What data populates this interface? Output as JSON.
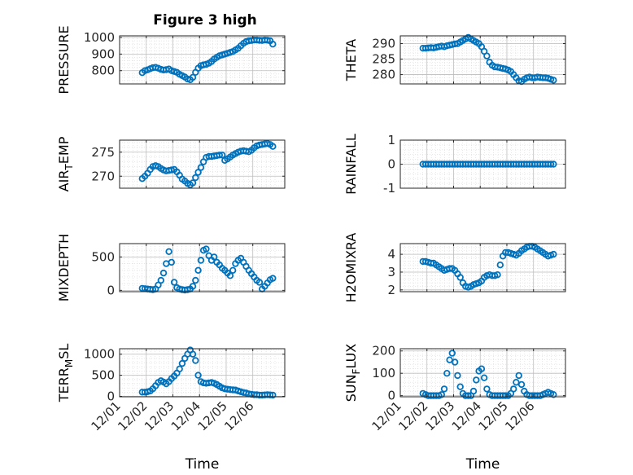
{
  "figure": {
    "title": "Figure 3 high",
    "accent_color": "#0072BD"
  },
  "chart_data": [
    {
      "type": "scatter",
      "ylabel": "PRESSURE",
      "ylim": [
        720,
        1010
      ],
      "yticks": [
        800,
        900,
        1000
      ],
      "x": [
        0.85,
        0.95,
        1.05,
        1.15,
        1.25,
        1.35,
        1.45,
        1.55,
        1.65,
        1.75,
        1.85,
        1.95,
        2.05,
        2.15,
        2.25,
        2.35,
        2.45,
        2.55,
        2.65,
        2.75,
        2.85,
        2.95,
        3.05,
        3.15,
        3.25,
        3.35,
        3.45,
        3.55,
        3.65,
        3.75,
        3.85,
        3.95,
        4.05,
        4.15,
        4.25,
        4.35,
        4.45,
        4.55,
        4.65,
        4.75,
        4.85,
        4.95,
        5.05,
        5.15,
        5.25,
        5.35,
        5.45,
        5.55,
        5.65,
        5.75
      ],
      "y": [
        788,
        800,
        805,
        812,
        818,
        820,
        815,
        808,
        804,
        806,
        810,
        800,
        795,
        790,
        778,
        770,
        762,
        750,
        745,
        760,
        790,
        815,
        830,
        835,
        838,
        845,
        855,
        870,
        880,
        890,
        895,
        900,
        905,
        910,
        915,
        925,
        935,
        950,
        965,
        975,
        980,
        982,
        985,
        985,
        983,
        982,
        985,
        984,
        980,
        960
      ]
    },
    {
      "type": "scatter",
      "ylabel": "THETA",
      "ylim": [
        277,
        292.5
      ],
      "yticks": [
        280,
        285,
        290
      ],
      "x": [
        0.85,
        0.95,
        1.05,
        1.15,
        1.25,
        1.35,
        1.45,
        1.55,
        1.65,
        1.75,
        1.85,
        1.95,
        2.05,
        2.15,
        2.25,
        2.35,
        2.45,
        2.55,
        2.65,
        2.75,
        2.85,
        2.95,
        3.05,
        3.15,
        3.25,
        3.35,
        3.45,
        3.55,
        3.65,
        3.75,
        3.85,
        3.95,
        4.05,
        4.15,
        4.25,
        4.35,
        4.45,
        4.55,
        4.65,
        4.75,
        4.85,
        4.95,
        5.05,
        5.15,
        5.25,
        5.35,
        5.45,
        5.55,
        5.65,
        5.75
      ],
      "y": [
        288.5,
        288.5,
        288.6,
        288.7,
        288.6,
        288.8,
        289.0,
        289.2,
        289.0,
        289.3,
        289.5,
        289.7,
        289.9,
        290.0,
        290.5,
        291.0,
        291.5,
        292.0,
        291.5,
        291.0,
        290.5,
        290.0,
        289.0,
        287.5,
        286.0,
        284.0,
        283.0,
        282.5,
        282.4,
        282.2,
        282.0,
        281.8,
        281.5,
        281.0,
        280.0,
        279.0,
        278.0,
        277.8,
        278.5,
        279.0,
        279.2,
        279.0,
        279.0,
        279.2,
        279.1,
        279.0,
        279.0,
        278.8,
        278.5,
        278.2
      ]
    },
    {
      "type": "scatter",
      "ylabel": "AIR_TEMP",
      "ylim": [
        267.5,
        277.5
      ],
      "yticks": [
        270,
        275
      ],
      "x": [
        0.85,
        0.95,
        1.05,
        1.15,
        1.25,
        1.35,
        1.45,
        1.55,
        1.65,
        1.75,
        1.85,
        1.95,
        2.05,
        2.15,
        2.25,
        2.35,
        2.45,
        2.55,
        2.65,
        2.75,
        2.85,
        2.95,
        3.05,
        3.15,
        3.25,
        3.35,
        3.45,
        3.55,
        3.65,
        3.75,
        3.85,
        3.95,
        4.05,
        4.15,
        4.25,
        4.35,
        4.45,
        4.55,
        4.65,
        4.75,
        4.85,
        4.95,
        5.05,
        5.15,
        5.25,
        5.35,
        5.45,
        5.55,
        5.65,
        5.75
      ],
      "y": [
        269.5,
        270.0,
        270.6,
        271.4,
        272.0,
        272.2,
        272.0,
        271.6,
        271.3,
        271.1,
        271.2,
        271.3,
        271.4,
        270.9,
        270.2,
        269.4,
        269.0,
        268.5,
        268.2,
        268.6,
        269.7,
        270.8,
        271.8,
        273.0,
        273.9,
        274.1,
        274.1,
        274.2,
        274.3,
        274.4,
        274.4,
        273.3,
        273.6,
        274.0,
        274.4,
        274.7,
        275.0,
        275.2,
        275.3,
        275.2,
        275.1,
        275.4,
        275.9,
        276.3,
        276.5,
        276.6,
        276.7,
        276.8,
        276.6,
        276.2
      ]
    },
    {
      "type": "scatter",
      "ylabel": "RAINFALL",
      "ylim": [
        -1,
        1
      ],
      "yticks": [
        -1,
        0,
        1
      ],
      "x": [
        0.85,
        0.95,
        1.05,
        1.15,
        1.25,
        1.35,
        1.45,
        1.55,
        1.65,
        1.75,
        1.85,
        1.95,
        2.05,
        2.15,
        2.25,
        2.35,
        2.45,
        2.55,
        2.65,
        2.75,
        2.85,
        2.95,
        3.05,
        3.15,
        3.25,
        3.35,
        3.45,
        3.55,
        3.65,
        3.75,
        3.85,
        3.95,
        4.05,
        4.15,
        4.25,
        4.35,
        4.45,
        4.55,
        4.65,
        4.75,
        4.85,
        4.95,
        5.05,
        5.15,
        5.25,
        5.35,
        5.45,
        5.55,
        5.65,
        5.75
      ],
      "y": [
        0,
        0,
        0,
        0,
        0,
        0,
        0,
        0,
        0,
        0,
        0,
        0,
        0,
        0,
        0,
        0,
        0,
        0,
        0,
        0,
        0,
        0,
        0,
        0,
        0,
        0,
        0,
        0,
        0,
        0,
        0,
        0,
        0,
        0,
        0,
        0,
        0,
        0,
        0,
        0,
        0,
        0,
        0,
        0,
        0,
        0,
        0,
        0,
        0,
        0
      ]
    },
    {
      "type": "scatter",
      "ylabel": "MIXDEPTH",
      "ylim": [
        -20,
        700
      ],
      "yticks": [
        0,
        500
      ],
      "x": [
        0.85,
        0.95,
        1.05,
        1.15,
        1.25,
        1.35,
        1.45,
        1.55,
        1.65,
        1.75,
        1.85,
        1.95,
        2.05,
        2.15,
        2.25,
        2.35,
        2.45,
        2.55,
        2.65,
        2.75,
        2.85,
        2.95,
        3.05,
        3.15,
        3.25,
        3.35,
        3.45,
        3.55,
        3.65,
        3.75,
        3.85,
        3.95,
        4.05,
        4.15,
        4.25,
        4.35,
        4.45,
        4.55,
        4.65,
        4.75,
        4.85,
        4.95,
        5.05,
        5.15,
        5.25,
        5.35,
        5.45,
        5.55,
        5.65,
        5.75
      ],
      "y": [
        30,
        25,
        20,
        15,
        10,
        20,
        80,
        150,
        260,
        400,
        580,
        420,
        120,
        40,
        20,
        10,
        5,
        10,
        20,
        60,
        150,
        300,
        450,
        600,
        620,
        520,
        450,
        500,
        420,
        380,
        330,
        300,
        260,
        220,
        300,
        400,
        450,
        480,
        420,
        360,
        300,
        250,
        200,
        150,
        120,
        20,
        60,
        110,
        160,
        180
      ]
    },
    {
      "type": "scatter",
      "ylabel": "H2OMIXRA",
      "ylim": [
        1.9,
        4.6
      ],
      "yticks": [
        2,
        3,
        4
      ],
      "x": [
        0.85,
        0.95,
        1.05,
        1.15,
        1.25,
        1.35,
        1.45,
        1.55,
        1.65,
        1.75,
        1.85,
        1.95,
        2.05,
        2.15,
        2.25,
        2.35,
        2.45,
        2.55,
        2.65,
        2.75,
        2.85,
        2.95,
        3.05,
        3.15,
        3.25,
        3.35,
        3.45,
        3.55,
        3.65,
        3.75,
        3.85,
        3.95,
        4.05,
        4.15,
        4.25,
        4.35,
        4.45,
        4.55,
        4.65,
        4.75,
        4.85,
        4.95,
        5.05,
        5.15,
        5.25,
        5.35,
        5.45,
        5.55,
        5.65,
        5.75
      ],
      "y": [
        3.6,
        3.6,
        3.55,
        3.5,
        3.5,
        3.4,
        3.3,
        3.2,
        3.1,
        3.15,
        3.2,
        3.2,
        3.1,
        2.9,
        2.7,
        2.4,
        2.2,
        2.15,
        2.2,
        2.3,
        2.35,
        2.4,
        2.5,
        2.7,
        2.8,
        2.85,
        2.8,
        2.8,
        2.85,
        3.4,
        3.9,
        4.1,
        4.1,
        4.05,
        4.0,
        3.95,
        4.05,
        4.2,
        4.3,
        4.4,
        4.45,
        4.45,
        4.4,
        4.3,
        4.2,
        4.1,
        4.0,
        3.9,
        3.95,
        4.0
      ]
    },
    {
      "type": "scatter",
      "ylabel": "TERR_MSL",
      "ylim": [
        -10,
        1130
      ],
      "yticks": [
        0,
        500,
        1000
      ],
      "x": [
        0.85,
        0.95,
        1.05,
        1.15,
        1.25,
        1.35,
        1.45,
        1.55,
        1.65,
        1.75,
        1.85,
        1.95,
        2.05,
        2.15,
        2.25,
        2.35,
        2.45,
        2.55,
        2.65,
        2.75,
        2.85,
        2.95,
        3.05,
        3.15,
        3.25,
        3.35,
        3.45,
        3.55,
        3.65,
        3.75,
        3.85,
        3.95,
        4.05,
        4.15,
        4.25,
        4.35,
        4.45,
        4.55,
        4.65,
        4.75,
        4.85,
        4.95,
        5.05,
        5.15,
        5.25,
        5.35,
        5.45,
        5.55,
        5.65,
        5.75
      ],
      "y": [
        100,
        100,
        110,
        130,
        180,
        250,
        330,
        370,
        340,
        300,
        350,
        420,
        480,
        550,
        650,
        780,
        900,
        1000,
        1100,
        1000,
        850,
        500,
        350,
        320,
        310,
        320,
        330,
        310,
        280,
        240,
        200,
        180,
        170,
        160,
        155,
        150,
        130,
        110,
        90,
        80,
        60,
        50,
        40,
        40,
        30,
        30,
        35,
        40,
        35,
        30
      ]
    },
    {
      "type": "scatter",
      "ylabel": "SUN_FLUX",
      "ylim": [
        -5,
        210
      ],
      "yticks": [
        0,
        100,
        200
      ],
      "x": [
        0.85,
        0.95,
        1.05,
        1.15,
        1.25,
        1.35,
        1.45,
        1.55,
        1.65,
        1.75,
        1.85,
        1.95,
        2.05,
        2.15,
        2.25,
        2.35,
        2.45,
        2.55,
        2.65,
        2.75,
        2.85,
        2.95,
        3.05,
        3.15,
        3.25,
        3.35,
        3.45,
        3.55,
        3.65,
        3.75,
        3.85,
        3.95,
        4.05,
        4.15,
        4.25,
        4.35,
        4.45,
        4.55,
        4.65,
        4.75,
        4.85,
        4.95,
        5.05,
        5.15,
        5.25,
        5.35,
        5.45,
        5.55,
        5.65,
        5.75
      ],
      "y": [
        10,
        5,
        0,
        0,
        0,
        0,
        0,
        5,
        30,
        100,
        160,
        190,
        150,
        90,
        40,
        10,
        0,
        0,
        0,
        20,
        70,
        110,
        120,
        80,
        30,
        5,
        0,
        0,
        0,
        0,
        0,
        0,
        0,
        10,
        30,
        60,
        90,
        50,
        20,
        5,
        0,
        0,
        0,
        0,
        0,
        5,
        10,
        15,
        10,
        5
      ]
    }
  ],
  "x_axis": {
    "xlim": [
      0,
      6.2
    ],
    "tick_labels": [
      "12/01",
      "12/02",
      "12/03",
      "12/04",
      "12/05",
      "12/06"
    ],
    "xlabel": "Time"
  }
}
